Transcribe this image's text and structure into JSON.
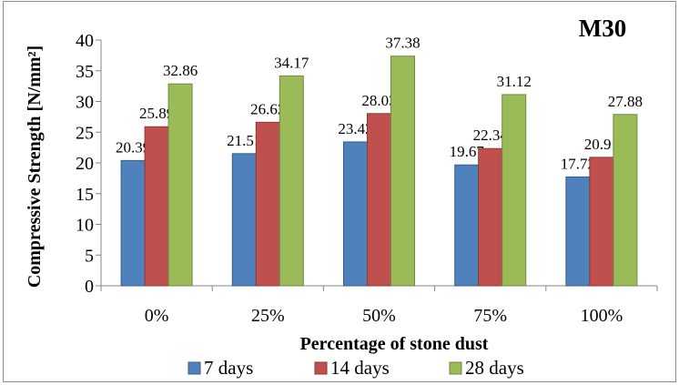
{
  "chart_data": {
    "type": "bar",
    "title": "M30",
    "xlabel": "Percentage of stone dust",
    "ylabel": "Compressive Strength [N/mm²]",
    "categories": [
      "0%",
      "25%",
      "50%",
      "75%",
      "100%"
    ],
    "ylim": [
      0,
      40
    ],
    "yticks": [
      "0",
      "5",
      "10",
      "15",
      "20",
      "25",
      "30",
      "35",
      "40"
    ],
    "grid": false,
    "legend_position": "bottom",
    "series": [
      {
        "name": "7 days",
        "values": [
          20.39,
          21.51,
          23.42,
          19.67,
          17.72
        ],
        "labels": [
          "20.39",
          "21.51",
          "23.42",
          "19.67",
          "17.72"
        ],
        "color": "#4F81BD",
        "edge": "#385D8A"
      },
      {
        "name": "14 days",
        "values": [
          25.89,
          26.62,
          28.03,
          22.34,
          20.91
        ],
        "labels": [
          "25.89",
          "26.62",
          "28.03",
          "22.34",
          "20.91"
        ],
        "color": "#C0504D",
        "edge": "#8C3836"
      },
      {
        "name": "28 days",
        "values": [
          32.86,
          34.17,
          37.38,
          31.12,
          27.88
        ],
        "labels": [
          "32.86",
          "34.17",
          "37.38",
          "31.12",
          "27.88"
        ],
        "color": "#9BBB59",
        "edge": "#71893F"
      }
    ]
  }
}
